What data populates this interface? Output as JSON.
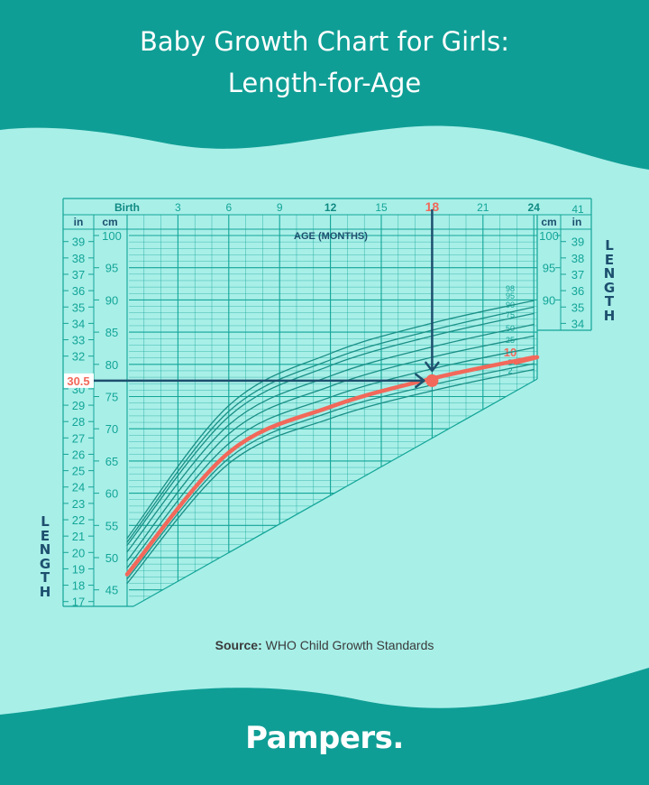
{
  "title_line1": "Baby Growth Chart for Girls:",
  "title_line2": "Length-for-Age",
  "source_label": "Source:",
  "source_text": "WHO Child Growth Standards",
  "brand": "Pampers.",
  "side_label": "LENGTH",
  "colors": {
    "header_bg": "#0f9e95",
    "page_bg": "#a8efe8",
    "grid": "#13a597",
    "curve": "#1a8f86",
    "highlight": "#f2685a",
    "arrow": "#1d4f6e"
  },
  "chart_data": {
    "type": "line",
    "xlabel": "AGE (MONTHS)",
    "x_unit": "months",
    "xlim": [
      0,
      24
    ],
    "x_ticks": [
      {
        "v": 0,
        "label": "Birth"
      },
      {
        "v": 3,
        "label": "3"
      },
      {
        "v": 6,
        "label": "6"
      },
      {
        "v": 9,
        "label": "9"
      },
      {
        "v": 12,
        "label": "12"
      },
      {
        "v": 15,
        "label": "15"
      },
      {
        "v": 18,
        "label": "18"
      },
      {
        "v": 21,
        "label": "21"
      },
      {
        "v": 24,
        "label": "24"
      }
    ],
    "y_unit_left": "cm",
    "y_unit_right": "in",
    "in_header": "in",
    "cm_header": "cm",
    "corner_label": "41",
    "cm_ticks_left": [
      45,
      50,
      55,
      60,
      65,
      70,
      75,
      80,
      85,
      90,
      95,
      100
    ],
    "in_ticks_left": [
      17,
      18,
      19,
      20,
      21,
      22,
      23,
      24,
      25,
      26,
      27,
      28,
      29,
      30,
      31,
      32,
      33,
      34,
      35,
      36,
      37,
      38,
      39
    ],
    "cm_ticks_right": [
      90,
      95,
      100
    ],
    "in_ticks_right": [
      34,
      35,
      36,
      37,
      38,
      39
    ],
    "percentiles": [
      {
        "label": "98",
        "values": [
          53.0,
          73.6,
          81.7,
          86.4,
          89.9
        ]
      },
      {
        "label": "95",
        "values": [
          52.4,
          72.7,
          80.7,
          85.3,
          88.9
        ]
      },
      {
        "label": "90",
        "values": [
          51.9,
          71.9,
          79.8,
          84.4,
          87.9
        ]
      },
      {
        "label": "75",
        "values": [
          50.9,
          70.6,
          78.2,
          82.7,
          86.2
        ]
      },
      {
        "label": "50",
        "values": [
          49.5,
          69.2,
          76.6,
          81.1,
          84.4
        ]
      },
      {
        "label": "25",
        "values": [
          48.4,
          67.7,
          74.9,
          79.3,
          82.6
        ]
      },
      {
        "label": "10",
        "values": [
          47.4,
          66.3,
          73.4,
          77.8,
          81.1
        ],
        "highlight": true
      },
      {
        "label": "5",
        "values": [
          46.7,
          65.4,
          72.6,
          76.8,
          80.1
        ]
      },
      {
        "label": "2",
        "values": [
          46.0,
          64.6,
          71.6,
          75.9,
          79.2
        ]
      }
    ],
    "percentile_months": [
      0,
      6,
      12,
      18,
      24
    ],
    "highlight_point": {
      "age_months": 18,
      "length_in": 30.5,
      "age_label": "18",
      "length_label": "30.5"
    }
  }
}
